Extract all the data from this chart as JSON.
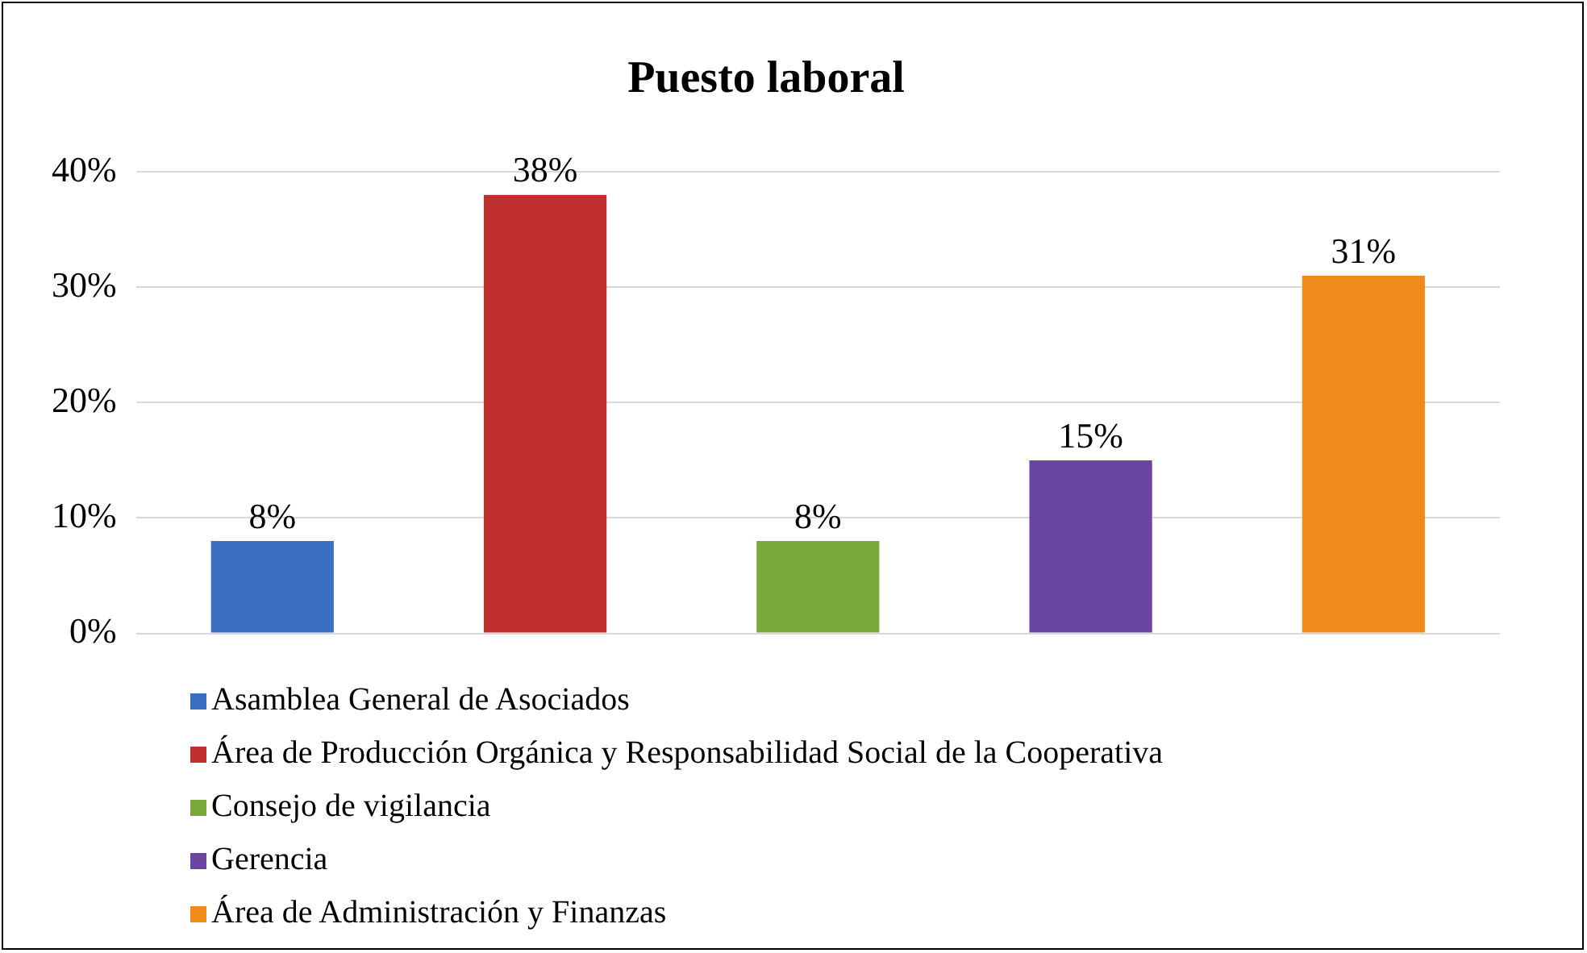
{
  "chart_data": {
    "type": "bar",
    "title": "Puesto laboral",
    "categories": [
      null,
      null,
      null,
      null,
      null
    ],
    "ylim": [
      0,
      40
    ],
    "yticks": [
      {
        "value": 0,
        "label": "0%"
      },
      {
        "value": 10,
        "label": "10%"
      },
      {
        "value": 20,
        "label": "20%"
      },
      {
        "value": 30,
        "label": "30%"
      },
      {
        "value": 40,
        "label": "40%"
      }
    ],
    "grid": "y",
    "legend": "bottom",
    "series": [
      {
        "name": "Asamblea General de Asociados",
        "color": "#3a6fc4",
        "values": [
          8,
          null,
          null,
          null,
          null
        ],
        "value_labels": [
          "8%",
          null,
          null,
          null,
          null
        ]
      },
      {
        "name": "Área de Producción Orgánica y Responsabilidad Social de la Cooperativa",
        "color": "#c0302f",
        "values": [
          null,
          38,
          null,
          null,
          null
        ],
        "value_labels": [
          null,
          "38%",
          null,
          null,
          null
        ]
      },
      {
        "name": "Consejo de vigilancia",
        "color": "#7aa83a",
        "values": [
          null,
          null,
          8,
          null,
          null
        ],
        "value_labels": [
          null,
          null,
          "8%",
          null,
          null
        ]
      },
      {
        "name": "Gerencia",
        "color": "#6a46a0",
        "values": [
          null,
          null,
          null,
          15,
          null
        ],
        "value_labels": [
          null,
          null,
          null,
          "15%",
          null
        ]
      },
      {
        "name": "Área de Administración y Finanzas",
        "color": "#f08a1a",
        "values": [
          null,
          null,
          null,
          null,
          31
        ],
        "value_labels": [
          null,
          null,
          null,
          null,
          "31%"
        ]
      }
    ]
  }
}
